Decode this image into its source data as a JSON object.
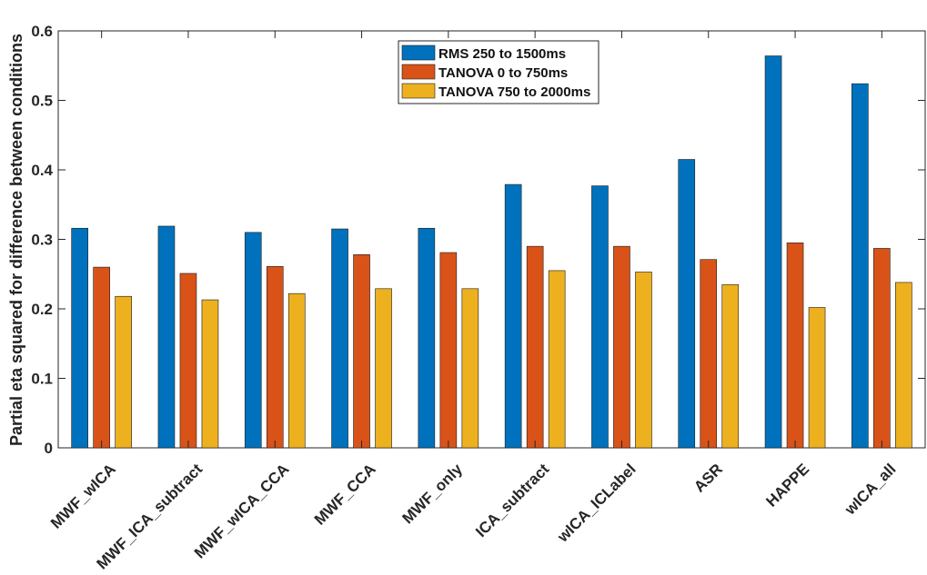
{
  "chart_data": {
    "type": "bar",
    "title": "",
    "xlabel": "",
    "ylabel": "Partial eta squared for difference between conditions",
    "ylim": [
      0,
      0.6
    ],
    "yticks": [
      "0",
      "0.1",
      "0.2",
      "0.3",
      "0.4",
      "0.5",
      "0.6"
    ],
    "grid": false,
    "legend_position": "top-center",
    "categories": [
      "MWF_wICA",
      "MWF_ICA_subtract",
      "MWF_wICA_CCA",
      "MWF_CCA",
      "MWF_only",
      "ICA_subtract",
      "wICA_ICLabel",
      "ASR",
      "HAPPE",
      "wICA_all"
    ],
    "series": [
      {
        "name": "RMS 250 to 1500ms",
        "color": "#0072BD",
        "values": [
          0.316,
          0.319,
          0.31,
          0.315,
          0.316,
          0.379,
          0.377,
          0.415,
          0.564,
          0.524
        ]
      },
      {
        "name": "TANOVA 0 to 750ms",
        "color": "#D95319",
        "values": [
          0.26,
          0.251,
          0.261,
          0.278,
          0.281,
          0.29,
          0.29,
          0.271,
          0.295,
          0.287
        ]
      },
      {
        "name": "TANOVA 750 to 2000ms",
        "color": "#EDB120",
        "values": [
          0.218,
          0.213,
          0.222,
          0.229,
          0.229,
          0.255,
          0.253,
          0.235,
          0.202,
          0.238
        ]
      }
    ]
  }
}
